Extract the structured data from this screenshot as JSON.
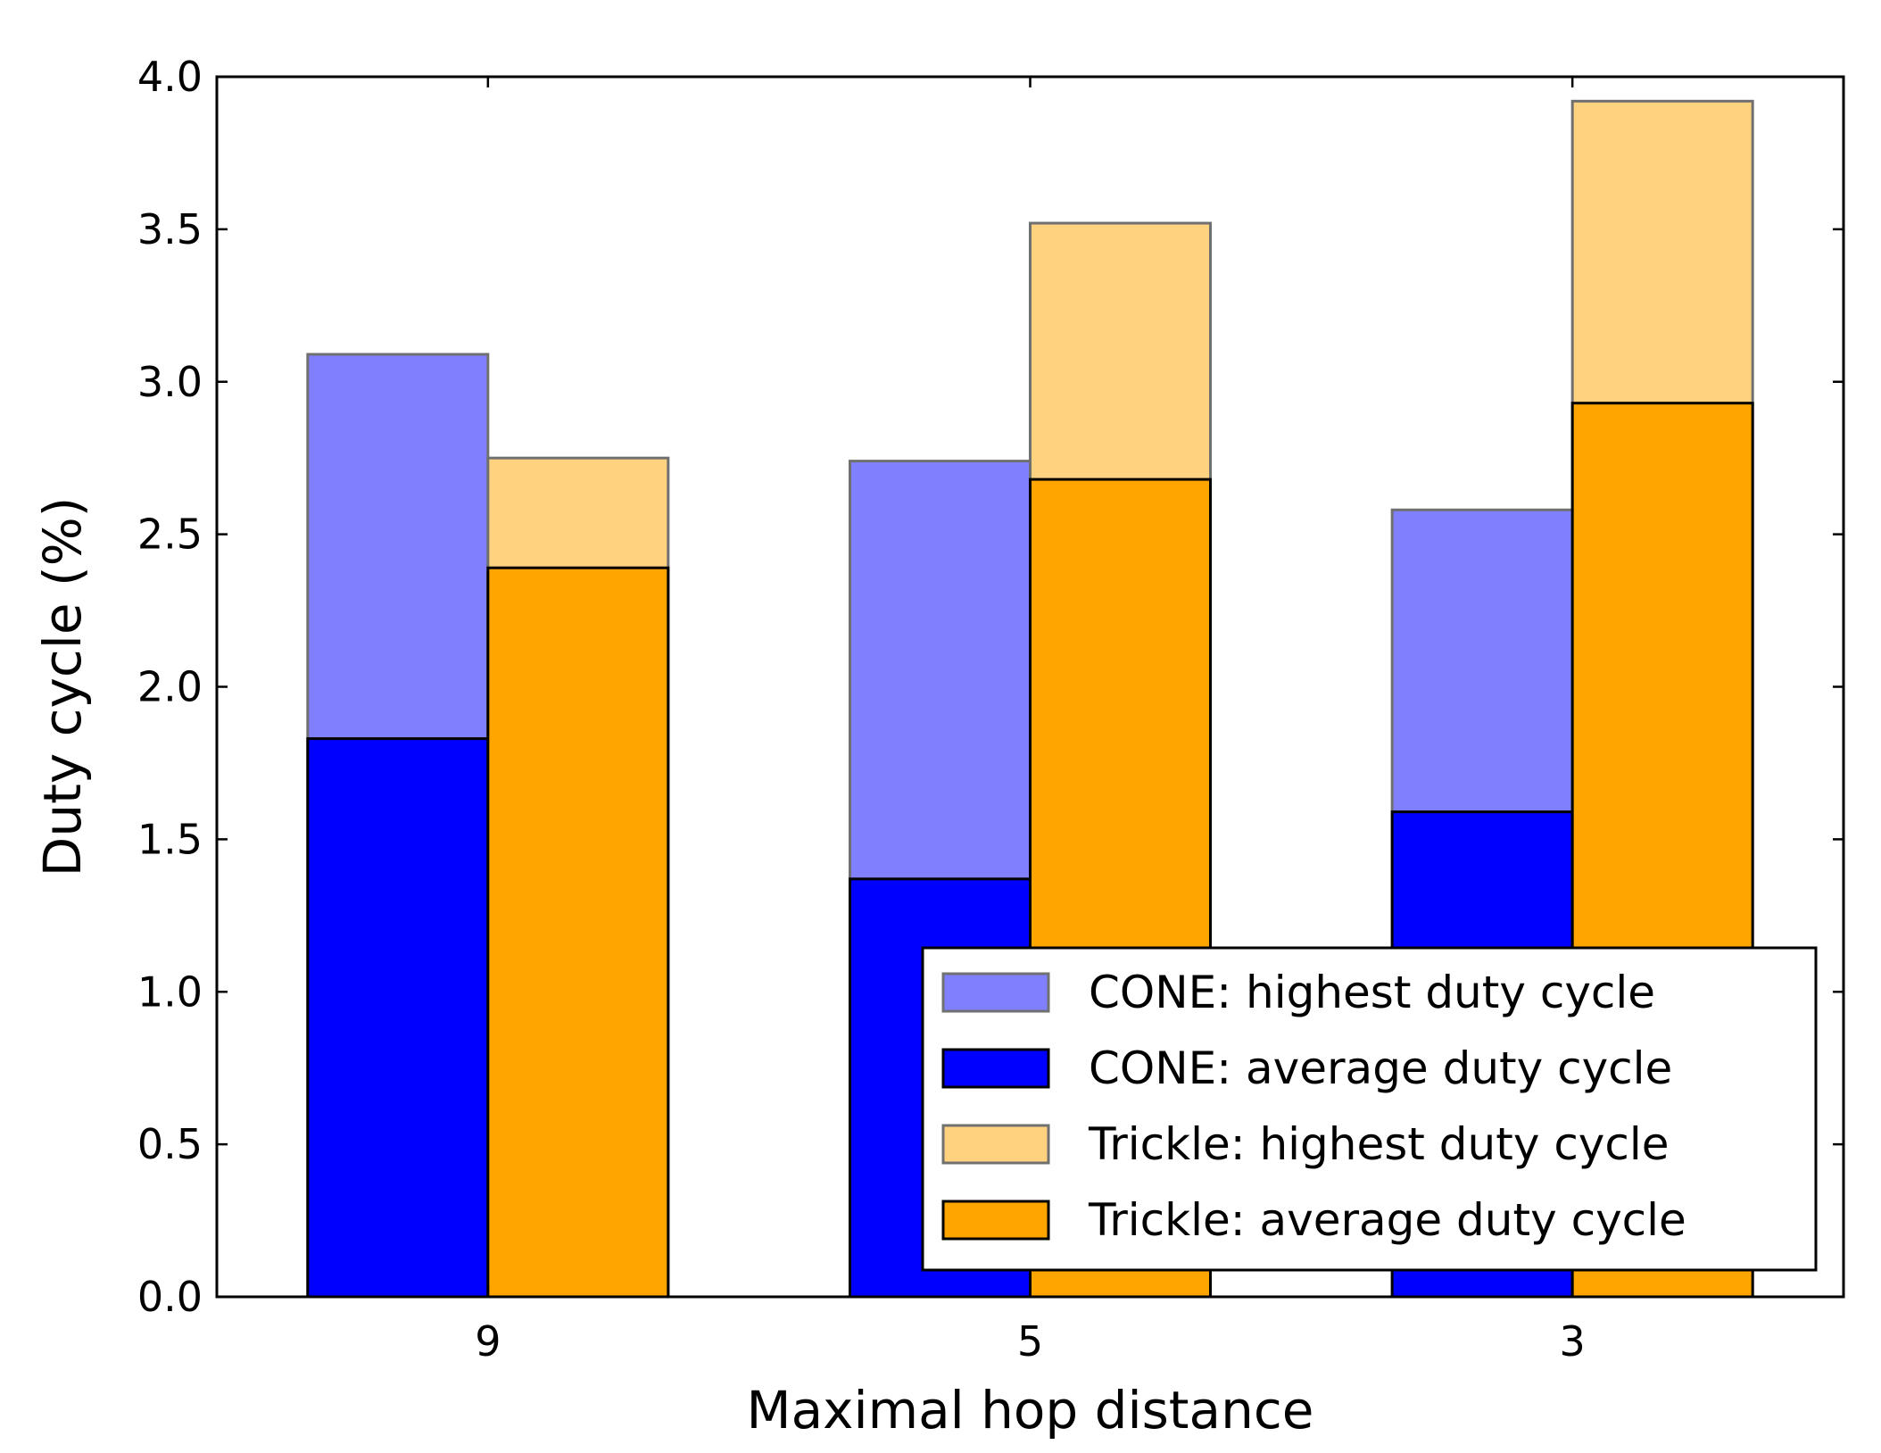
{
  "chart_data": {
    "type": "bar",
    "title": "",
    "xlabel": "Maximal hop distance",
    "ylabel": "Duty cycle (%)",
    "categories": [
      "9",
      "5",
      "3"
    ],
    "ylim": [
      0,
      4.0
    ],
    "yticks": [
      "0.0",
      "0.5",
      "1.0",
      "1.5",
      "2.0",
      "2.5",
      "3.0",
      "3.5",
      "4.0"
    ],
    "grid": false,
    "legend_position": "lower-right",
    "series": [
      {
        "name": "CONE: highest duty cycle",
        "group": "CONE",
        "kind": "highest",
        "color": "#8080ff",
        "edge": "#707070",
        "values": [
          3.09,
          2.74,
          2.58
        ]
      },
      {
        "name": "CONE: average duty cycle",
        "group": "CONE",
        "kind": "average",
        "color": "#0000ff",
        "edge": "#000000",
        "values": [
          1.83,
          1.37,
          1.59
        ]
      },
      {
        "name": "Trickle: highest duty cycle",
        "group": "Trickle",
        "kind": "highest",
        "color": "#ffd280",
        "edge": "#707070",
        "values": [
          2.75,
          3.52,
          3.92
        ]
      },
      {
        "name": "Trickle: average duty cycle",
        "group": "Trickle",
        "kind": "average",
        "color": "#ffa500",
        "edge": "#000000",
        "values": [
          2.39,
          2.68,
          2.93
        ]
      }
    ]
  }
}
